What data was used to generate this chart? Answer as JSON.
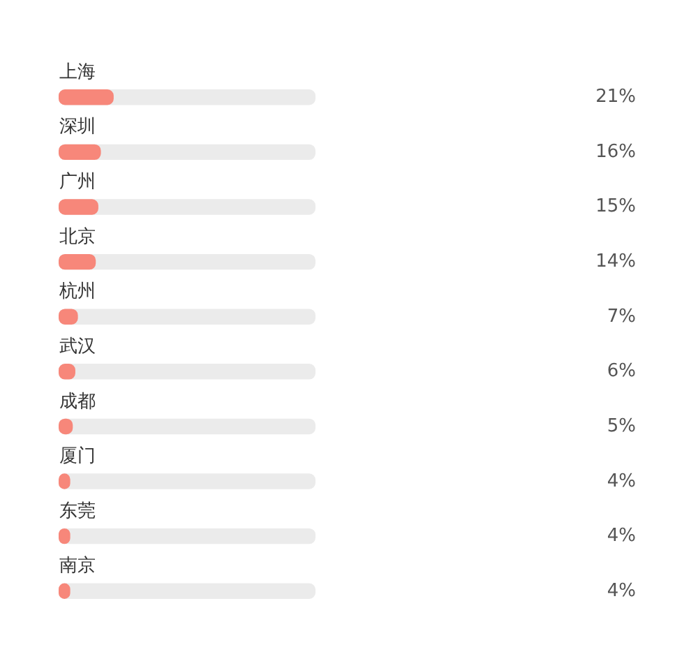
{
  "chart_data": {
    "type": "bar",
    "orientation": "horizontal",
    "categories": [
      "上海",
      "深圳",
      "广州",
      "北京",
      "杭州",
      "武汉",
      "成都",
      "厦门",
      "东莞",
      "南京"
    ],
    "values": [
      21,
      16,
      15,
      14,
      7,
      6,
      5,
      4,
      4,
      4
    ],
    "value_labels": [
      "21%",
      "16%",
      "15%",
      "14%",
      "7%",
      "6%",
      "5%",
      "4%",
      "4%",
      "4%"
    ],
    "color": "#f7877a",
    "xlim": [
      0,
      100
    ],
    "tick_labels": false,
    "grid": false
  }
}
